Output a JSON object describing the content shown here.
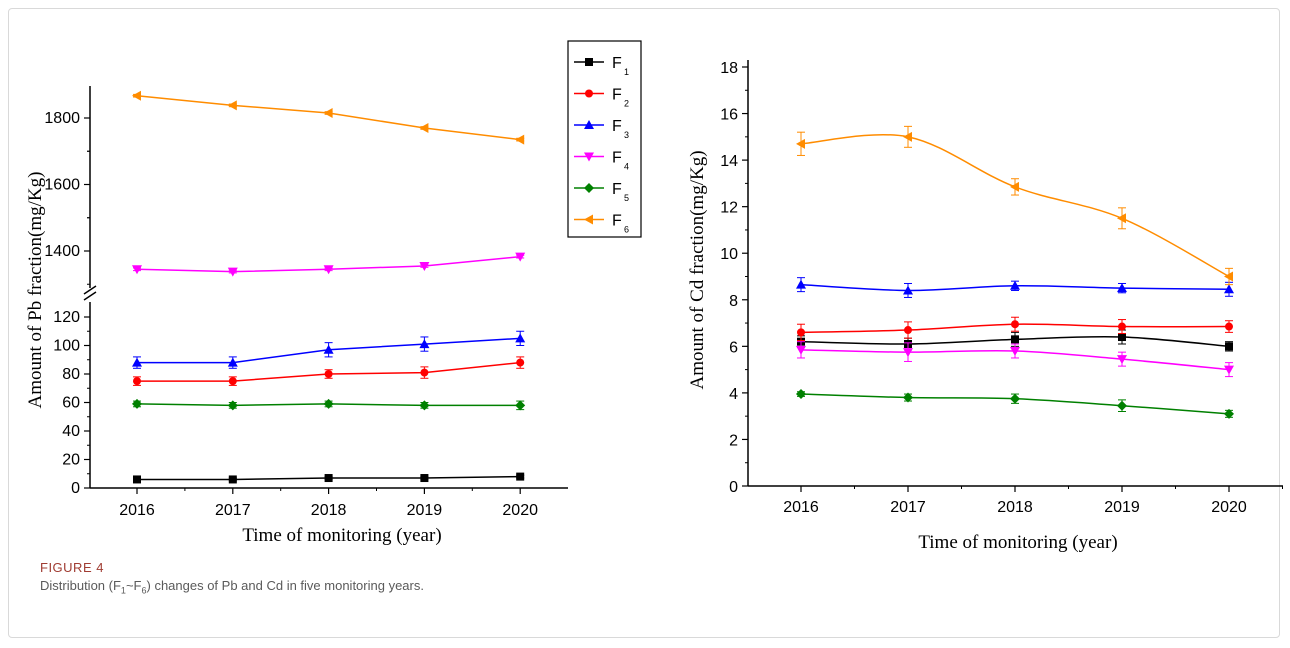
{
  "figure": {
    "label": "FIGURE 4",
    "caption_parts": [
      "Distribution (F",
      "1",
      "~F",
      "6",
      ") changes of Pb and Cd in five monitoring years."
    ]
  },
  "legend": {
    "entries": [
      {
        "base": "F",
        "sub": "1",
        "color": "#000000",
        "marker": "square"
      },
      {
        "base": "F",
        "sub": "2",
        "color": "#ff0000",
        "marker": "circle"
      },
      {
        "base": "F",
        "sub": "3",
        "color": "#0000ff",
        "marker": "triangle-up"
      },
      {
        "base": "F",
        "sub": "4",
        "color": "#ff00ff",
        "marker": "triangle-down"
      },
      {
        "base": "F",
        "sub": "5",
        "color": "#008000",
        "marker": "diamond"
      },
      {
        "base": "F",
        "sub": "6",
        "color": "#ff8c00",
        "marker": "triangle-left"
      }
    ]
  },
  "chart_data": [
    {
      "type": "line",
      "xlabel": "Time of monitoring (year)",
      "ylabel": "Amount of Pb fraction(mg/Kg)",
      "x": [
        2016,
        2017,
        2018,
        2019,
        2020
      ],
      "y_broken_axis": true,
      "ylim_lower": [
        0,
        130
      ],
      "ylim_upper": [
        1300,
        1900
      ],
      "yticks_lower": [
        "0",
        "20",
        "40",
        "60",
        "80",
        "100",
        "120"
      ],
      "yticks_upper": [
        "1400",
        "1600",
        "1800"
      ],
      "series": [
        {
          "name": "F1",
          "values": [
            6,
            6,
            7,
            7,
            8
          ],
          "errors": [
            1,
            1,
            1,
            1,
            1
          ]
        },
        {
          "name": "F2",
          "values": [
            75,
            75,
            80,
            81,
            88
          ],
          "errors": [
            3,
            3,
            3,
            4,
            4
          ]
        },
        {
          "name": "F3",
          "values": [
            88,
            88,
            97,
            101,
            105
          ],
          "errors": [
            4,
            4,
            5,
            5,
            5
          ]
        },
        {
          "name": "F4",
          "values": [
            1345,
            1338,
            1345,
            1355,
            1383
          ],
          "errors": [
            4,
            4,
            4,
            4,
            4
          ]
        },
        {
          "name": "F5",
          "values": [
            59,
            58,
            59,
            58,
            58
          ],
          "errors": [
            2,
            2,
            2,
            2,
            3
          ]
        },
        {
          "name": "F6",
          "values": [
            1867,
            1838,
            1815,
            1770,
            1735
          ],
          "errors": [
            4,
            4,
            4,
            4,
            4
          ]
        }
      ]
    },
    {
      "type": "line",
      "xlabel": "Time of monitoring (year)",
      "ylabel": "Amount of Cd fraction(mg/Kg)",
      "x": [
        2016,
        2017,
        2018,
        2019,
        2020
      ],
      "ylim": [
        0,
        18
      ],
      "yticks": [
        "0",
        "2",
        "4",
        "6",
        "8",
        "10",
        "12",
        "14",
        "16",
        "18"
      ],
      "series": [
        {
          "name": "F1",
          "values": [
            6.2,
            6.1,
            6.3,
            6.4,
            6.0
          ],
          "errors": [
            0.25,
            0.25,
            0.3,
            0.3,
            0.2
          ]
        },
        {
          "name": "F2",
          "values": [
            6.6,
            6.7,
            6.95,
            6.85,
            6.85
          ],
          "errors": [
            0.35,
            0.35,
            0.3,
            0.3,
            0.25
          ]
        },
        {
          "name": "F3",
          "values": [
            8.65,
            8.4,
            8.6,
            8.5,
            8.45
          ],
          "errors": [
            0.3,
            0.3,
            0.2,
            0.2,
            0.3
          ]
        },
        {
          "name": "F4",
          "values": [
            5.85,
            5.75,
            5.8,
            5.45,
            5.0
          ],
          "errors": [
            0.35,
            0.4,
            0.3,
            0.3,
            0.3
          ]
        },
        {
          "name": "F5",
          "values": [
            3.95,
            3.8,
            3.75,
            3.45,
            3.1
          ],
          "errors": [
            0.1,
            0.15,
            0.2,
            0.25,
            0.15
          ]
        },
        {
          "name": "F6",
          "values": [
            14.7,
            15.0,
            12.85,
            11.5,
            9.0
          ],
          "errors": [
            0.5,
            0.45,
            0.35,
            0.45,
            0.35
          ]
        }
      ]
    }
  ]
}
